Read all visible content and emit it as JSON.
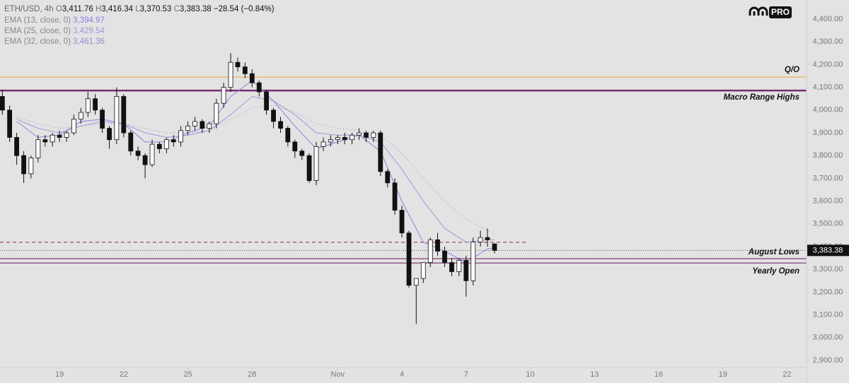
{
  "chart_data": {
    "type": "candlestick",
    "title": "ETH/USD, 4h",
    "ohlc_text": [
      {
        "key": "O",
        "value": "3,411.76"
      },
      {
        "key": "H",
        "value": "3,416.34"
      },
      {
        "key": "L",
        "value": "3,370.53"
      },
      {
        "key": "C",
        "value": "3,383.38"
      }
    ],
    "change_text": "−28.54 (−0.84%)",
    "badge": "PRO",
    "x": [
      16.33,
      16.67,
      17,
      17.33,
      17.67,
      18,
      18.33,
      18.67,
      19,
      19.33,
      19.67,
      20,
      20.33,
      20.67,
      21,
      21.33,
      21.67,
      22,
      22.33,
      22.67,
      23,
      23.33,
      23.67,
      24,
      24.33,
      24.67,
      25,
      25.33,
      25.67,
      26,
      26.33,
      26.67,
      27,
      27.33,
      27.67,
      28,
      28.33,
      28.67,
      29,
      29.33,
      29.67,
      30,
      30.33,
      30.67,
      31,
      31.33,
      31.67,
      32,
      32.33,
      32.67,
      33,
      33.33,
      33.67,
      34,
      34.33,
      34.67,
      35,
      35.33,
      35.67,
      36,
      36.33,
      36.67,
      37,
      37.33,
      37.67,
      38,
      38.33,
      38.67,
      39,
      39.33
    ],
    "open": [
      4060,
      4000,
      3880,
      3800,
      3720,
      3790,
      3870,
      3860,
      3890,
      3880,
      3900,
      3960,
      3990,
      4050,
      4000,
      3920,
      3870,
      4060,
      3900,
      3820,
      3800,
      3760,
      3850,
      3830,
      3870,
      3860,
      3910,
      3930,
      3950,
      3920,
      3940,
      4030,
      4100,
      4210,
      4190,
      4160,
      4120,
      4080,
      4000,
      3950,
      3920,
      3860,
      3820,
      3800,
      3690,
      3840,
      3860,
      3870,
      3880,
      3870,
      3890,
      3900,
      3880,
      3900,
      3730,
      3680,
      3560,
      3460,
      3230,
      3260,
      3330,
      3430,
      3380,
      3330,
      3290,
      3340,
      3250,
      3420,
      3440,
      3411.76
    ],
    "high": [
      4090,
      4020,
      3900,
      3820,
      3800,
      3890,
      3890,
      3900,
      3910,
      3910,
      3980,
      4010,
      4080,
      4070,
      4010,
      3930,
      4100,
      4070,
      3910,
      3840,
      3810,
      3870,
      3860,
      3880,
      3890,
      3930,
      3950,
      3970,
      3960,
      3950,
      4050,
      4120,
      4250,
      4230,
      4210,
      4180,
      4130,
      4090,
      4010,
      3970,
      3930,
      3870,
      3830,
      3810,
      3860,
      3880,
      3890,
      3890,
      3900,
      3900,
      3920,
      3910,
      3910,
      3910,
      3740,
      3700,
      3580,
      3470,
      3250,
      3320,
      3440,
      3460,
      3400,
      3350,
      3350,
      3360,
      3440,
      3470,
      3480,
      3416.34
    ],
    "low": [
      3980,
      3860,
      3760,
      3680,
      3700,
      3770,
      3840,
      3840,
      3860,
      3860,
      3890,
      3940,
      3970,
      3980,
      3900,
      3830,
      3850,
      3880,
      3800,
      3780,
      3700,
      3750,
      3810,
      3810,
      3840,
      3840,
      3890,
      3910,
      3900,
      3900,
      3920,
      4010,
      4080,
      4170,
      4140,
      4100,
      4060,
      3980,
      3920,
      3900,
      3840,
      3790,
      3780,
      3680,
      3670,
      3820,
      3840,
      3850,
      3850,
      3850,
      3870,
      3860,
      3860,
      3710,
      3660,
      3540,
      3440,
      3220,
      3060,
      3240,
      3310,
      3360,
      3310,
      3270,
      3270,
      3180,
      3230,
      3400,
      3400,
      3370.53
    ],
    "close": [
      4000,
      3880,
      3800,
      3720,
      3790,
      3870,
      3860,
      3890,
      3880,
      3900,
      3960,
      3990,
      4050,
      4000,
      3920,
      3870,
      4060,
      3900,
      3820,
      3800,
      3760,
      3850,
      3830,
      3870,
      3860,
      3910,
      3930,
      3950,
      3920,
      3940,
      4030,
      4100,
      4210,
      4190,
      4160,
      4120,
      4080,
      4000,
      3950,
      3920,
      3860,
      3820,
      3800,
      3690,
      3840,
      3860,
      3870,
      3880,
      3870,
      3890,
      3900,
      3880,
      3900,
      3730,
      3680,
      3560,
      3460,
      3230,
      3260,
      3330,
      3430,
      3380,
      3330,
      3290,
      3340,
      3250,
      3420,
      3440,
      3430,
      3383.38
    ],
    "up_color": "#ffffff",
    "down_color": "#111111",
    "series": [
      {
        "name": "EMA (13, close, 0)",
        "value_label": "3,394.97",
        "color": "#8f7fe0",
        "style": "solid",
        "x": [
          17,
          18,
          19,
          20,
          21,
          22,
          23,
          24,
          25,
          26,
          27,
          28,
          29,
          30,
          31,
          32,
          33,
          34,
          35,
          36,
          37,
          38,
          39,
          39.33
        ],
        "values": [
          3950,
          3880,
          3890,
          3950,
          3960,
          3940,
          3860,
          3860,
          3900,
          3930,
          4060,
          4130,
          4040,
          3930,
          3830,
          3860,
          3890,
          3820,
          3600,
          3420,
          3380,
          3330,
          3390,
          3394.97
        ]
      },
      {
        "name": "EMA (25, close, 0)",
        "value_label": "3,429.54",
        "color": "#a397dd",
        "style": "solid",
        "x": [
          17,
          18,
          19,
          20,
          21,
          22,
          23,
          24,
          25,
          26,
          27,
          28,
          29,
          30,
          31,
          32,
          33,
          34,
          35,
          36,
          37,
          38,
          39,
          39.33
        ],
        "values": [
          3960,
          3920,
          3900,
          3930,
          3950,
          3940,
          3900,
          3880,
          3890,
          3910,
          3980,
          4060,
          4040,
          3980,
          3900,
          3890,
          3890,
          3860,
          3740,
          3600,
          3480,
          3420,
          3430,
          3429.54
        ]
      },
      {
        "name": "EMA (32, close, 0)",
        "value_label": "3,461.36",
        "color": "#9b8acb",
        "style": "dotted",
        "x": [
          17,
          18,
          19,
          20,
          21,
          22,
          23,
          24,
          25,
          26,
          27,
          28,
          29,
          30,
          31,
          32,
          33,
          34,
          35,
          36,
          37,
          38,
          39,
          39.33
        ],
        "values": [
          3970,
          3940,
          3920,
          3930,
          3940,
          3940,
          3920,
          3900,
          3900,
          3910,
          3960,
          4010,
          4020,
          3990,
          3940,
          3920,
          3910,
          3890,
          3810,
          3700,
          3600,
          3520,
          3470,
          3461.36
        ]
      }
    ],
    "levels": [
      {
        "label": "Q/O",
        "value": 4145,
        "color": "#f2a341",
        "style": "solid",
        "width": 1
      },
      {
        "label": "Macro Range Highs",
        "value": 4086,
        "color": "#7b2a70",
        "style": "solid",
        "width": 2.5
      },
      {
        "value": 3419,
        "color": "#8b2a3a",
        "style": "dashed",
        "width": 1
      },
      {
        "label": "August Lows",
        "value": 3347,
        "color": "#7b2a70",
        "style": "solid",
        "width": 1.2
      },
      {
        "label": "Yearly Open",
        "value": 3328,
        "color": "#7b2a70",
        "style": "solid",
        "width": 1.2
      }
    ],
    "last_price": {
      "value": 3383.38,
      "label": "3,383.38"
    },
    "xlim": [
      16.22,
      53.91
    ],
    "xticks": [
      {
        "value": 19,
        "label": "19"
      },
      {
        "value": 22,
        "label": "22"
      },
      {
        "value": 25,
        "label": "25"
      },
      {
        "value": 28,
        "label": "28"
      },
      {
        "value": 32,
        "label": "Nov"
      },
      {
        "value": 35,
        "label": "4"
      },
      {
        "value": 38,
        "label": "7"
      },
      {
        "value": 41,
        "label": "10"
      },
      {
        "value": 44,
        "label": "13"
      },
      {
        "value": 47,
        "label": "16"
      },
      {
        "value": 50,
        "label": "19"
      },
      {
        "value": 53,
        "label": "22"
      }
    ],
    "ylim": [
      2900,
      4400
    ],
    "yticks": [
      {
        "value": 2900,
        "label": "2,900.00"
      },
      {
        "value": 3000,
        "label": "3,000.00"
      },
      {
        "value": 3100,
        "label": "3,100.00"
      },
      {
        "value": 3200,
        "label": "3,200.00"
      },
      {
        "value": 3300,
        "label": "3,300.00"
      },
      {
        "value": 3400,
        "label": "3,400.00"
      },
      {
        "value": 3500,
        "label": "3,500.00"
      },
      {
        "value": 3600,
        "label": "3,600.00"
      },
      {
        "value": 3700,
        "label": "3,700.00"
      },
      {
        "value": 3800,
        "label": "3,800.00"
      },
      {
        "value": 3900,
        "label": "3,900.00"
      },
      {
        "value": 4000,
        "label": "4,000.00"
      },
      {
        "value": 4100,
        "label": "4,100.00"
      },
      {
        "value": 4200,
        "label": "4,200.00"
      },
      {
        "value": 4300,
        "label": "4,300.00"
      },
      {
        "value": 4400,
        "label": "4,400.00"
      }
    ]
  }
}
